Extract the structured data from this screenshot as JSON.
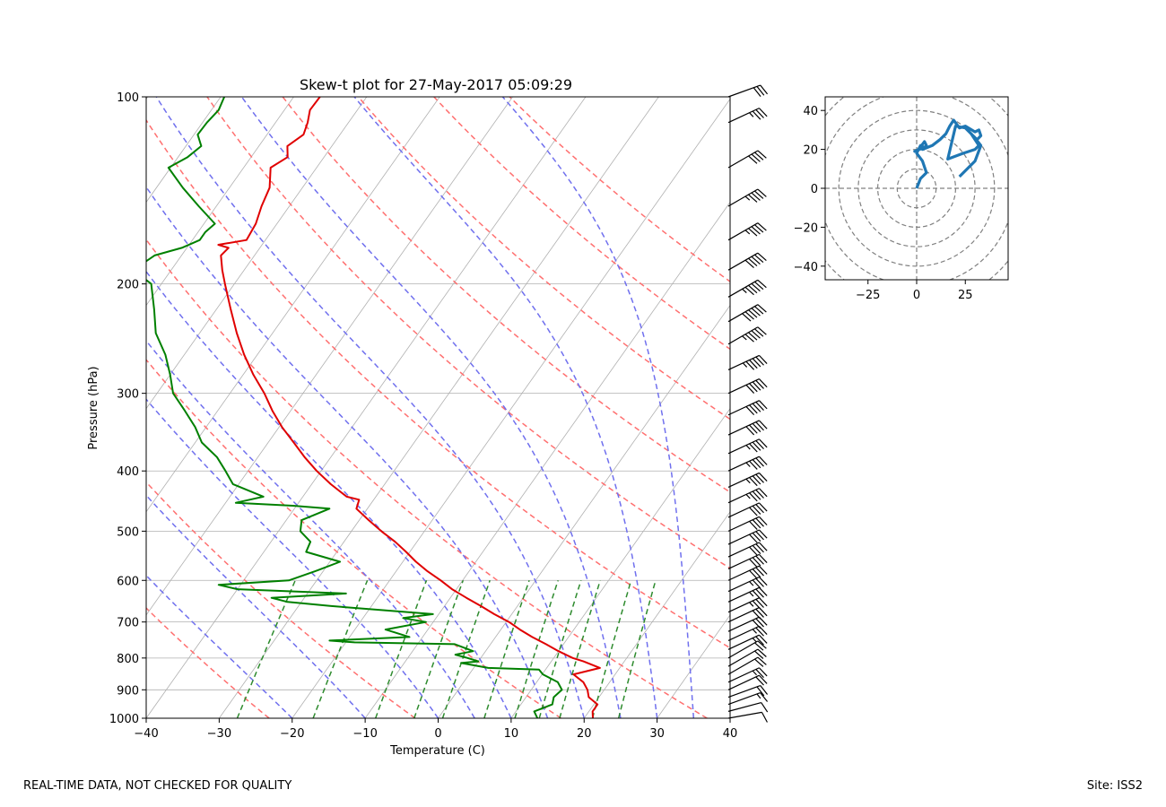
{
  "footer": {
    "left_note": "REAL-TIME DATA, NOT CHECKED FOR QUALITY",
    "site_label": "Site: ISS2"
  },
  "colors": {
    "temperature": "#e00000",
    "dewpoint": "#008000",
    "dry_adiabat": "#ff7070",
    "moist_adiabat": "#7070ee",
    "mixing_ratio": "#2e8b2e",
    "isotherm": "#b0b0b0",
    "hodograph": "#1f77b4",
    "barb": "#000000"
  },
  "chart_data": [
    {
      "type": "line",
      "subtype": "skew-t",
      "title": "Skew-t plot for 27-May-2017 05:09:29",
      "xlabel": "Temperature (C)",
      "ylabel": "Pressure (hPa)",
      "xlim": [
        -40,
        40
      ],
      "ylim": [
        1000,
        100
      ],
      "y_scale": "log",
      "x_ticks": [
        -40,
        -30,
        -20,
        -10,
        0,
        10,
        20,
        30,
        40
      ],
      "y_ticks": [
        100,
        200,
        300,
        400,
        500,
        600,
        700,
        800,
        900,
        1000
      ],
      "grid": true,
      "series": [
        {
          "key": "temperature",
          "pressure": [
            1000,
            975,
            950,
            925,
            900,
            875,
            850,
            830,
            810,
            800,
            780,
            760,
            740,
            720,
            700,
            680,
            660,
            640,
            620,
            600,
            580,
            560,
            540,
            520,
            500,
            480,
            460,
            445,
            440,
            420,
            400,
            380,
            360,
            340,
            320,
            300,
            280,
            260,
            240,
            220,
            200,
            190,
            180,
            175,
            173,
            170,
            160,
            150,
            140,
            130,
            125,
            120,
            115,
            110,
            105,
            100
          ],
          "values": [
            21.2,
            20.5,
            20.5,
            18.6,
            17.7,
            16.4,
            14.3,
            17.3,
            14.4,
            12.6,
            10.0,
            7.6,
            5.0,
            2.6,
            0.4,
            -2.4,
            -5.0,
            -7.8,
            -10.6,
            -13.0,
            -15.7,
            -18.2,
            -20.5,
            -23.0,
            -25.9,
            -28.7,
            -31.5,
            -32.0,
            -34.0,
            -37.4,
            -40.6,
            -43.6,
            -46.5,
            -49.6,
            -52.5,
            -55.3,
            -58.6,
            -61.8,
            -64.9,
            -68.0,
            -71.3,
            -73.0,
            -74.6,
            -74.3,
            -76.0,
            -72.6,
            -72.9,
            -73.8,
            -74.5,
            -76.3,
            -75.0,
            -76.1,
            -75.0,
            -75.6,
            -76.5,
            -76.4
          ]
        },
        {
          "key": "dewpoint",
          "pressure": [
            1000,
            975,
            950,
            925,
            900,
            875,
            850,
            835,
            830,
            815,
            810,
            800,
            790,
            780,
            760,
            755,
            750,
            740,
            720,
            700,
            690,
            680,
            660,
            650,
            640,
            630,
            620,
            610,
            600,
            580,
            560,
            540,
            520,
            500,
            480,
            460,
            455,
            450,
            445,
            440,
            420,
            400,
            380,
            360,
            340,
            320,
            300,
            280,
            260,
            240,
            220,
            200,
            190,
            180,
            175,
            170,
            165,
            160,
            150,
            140,
            130,
            125,
            120,
            115,
            110,
            105,
            100
          ],
          "values": [
            13.6,
            12.5,
            14.3,
            13.8,
            14.2,
            12.9,
            10.1,
            9.1,
            2.0,
            -2.2,
            0.0,
            -1.8,
            -3.8,
            -1.7,
            -4.9,
            -18.8,
            -22.4,
            -11.8,
            -15.8,
            -11.0,
            -14.5,
            -10.8,
            -25.5,
            -31.9,
            -34.5,
            -24.7,
            -40.0,
            -43.0,
            -33.8,
            -31.1,
            -28.6,
            -34.2,
            -34.6,
            -37.0,
            -37.9,
            -35.2,
            -40.5,
            -48.6,
            -47.0,
            -45.4,
            -50.8,
            -53.1,
            -55.6,
            -59.1,
            -61.5,
            -64.5,
            -67.8,
            -70.0,
            -72.6,
            -76.0,
            -78.5,
            -81.4,
            -85.2,
            -83.7,
            -80.7,
            -79.0,
            -79.0,
            -78.5,
            -82.4,
            -86.4,
            -90.3,
            -88.7,
            -87.9,
            -89.5,
            -89.4,
            -89.0,
            -89.5
          ]
        }
      ],
      "dry_adiabats_theta_k": [
        250,
        270,
        290,
        310,
        330,
        350,
        370,
        390,
        410,
        430
      ],
      "moist_adiabats_c": [
        -20,
        -10,
        0,
        5,
        10,
        15,
        20,
        25,
        30,
        35
      ],
      "mixing_ratios_gkg": [
        0.4,
        1,
        2,
        3,
        4,
        6,
        8,
        10,
        12,
        16,
        20
      ],
      "wind_barbs": {
        "pressure": [
          1000,
          975,
          950,
          925,
          900,
          875,
          850,
          825,
          800,
          775,
          750,
          725,
          700,
          675,
          650,
          625,
          600,
          575,
          550,
          525,
          500,
          475,
          450,
          425,
          400,
          375,
          350,
          325,
          300,
          275,
          250,
          230,
          210,
          190,
          170,
          150,
          130,
          110,
          100
        ],
        "speed_kt": [
          8,
          12,
          14,
          18,
          22,
          24,
          22,
          20,
          22,
          24,
          26,
          30,
          32,
          34,
          34,
          36,
          38,
          38,
          40,
          40,
          42,
          42,
          44,
          45,
          46,
          46,
          48,
          50,
          52,
          54,
          56,
          58,
          56,
          52,
          46,
          44,
          40,
          36,
          30
        ],
        "direction_deg": [
          260,
          255,
          250,
          250,
          245,
          245,
          240,
          240,
          240,
          245,
          245,
          245,
          245,
          245,
          245,
          245,
          245,
          245,
          245,
          245,
          245,
          245,
          245,
          245,
          245,
          245,
          245,
          245,
          245,
          245,
          240,
          240,
          240,
          240,
          240,
          240,
          240,
          245,
          250
        ]
      }
    },
    {
      "type": "line",
      "subtype": "hodograph",
      "xlim": [
        -47,
        47
      ],
      "ylim": [
        -47,
        47
      ],
      "x_ticks": [
        -25,
        0,
        25
      ],
      "y_ticks": [
        -40,
        -20,
        0,
        20,
        40
      ],
      "rings": [
        10,
        20,
        30,
        40,
        50,
        60
      ],
      "u": [
        0,
        2,
        5,
        3,
        0,
        2,
        4,
        -1,
        1,
        4,
        5,
        3,
        8,
        12,
        15,
        17,
        19,
        22,
        25,
        30,
        32,
        33,
        31,
        25,
        20,
        16,
        24,
        30,
        32,
        30,
        28,
        33,
        30,
        22
      ],
      "v": [
        0,
        5,
        8,
        14,
        18,
        22,
        21,
        19,
        20,
        24,
        22,
        20,
        22,
        25,
        28,
        32,
        35,
        31,
        32,
        29,
        30,
        27,
        25,
        31,
        32,
        15,
        18,
        20,
        22,
        25,
        28,
        22,
        14,
        6
      ]
    }
  ]
}
